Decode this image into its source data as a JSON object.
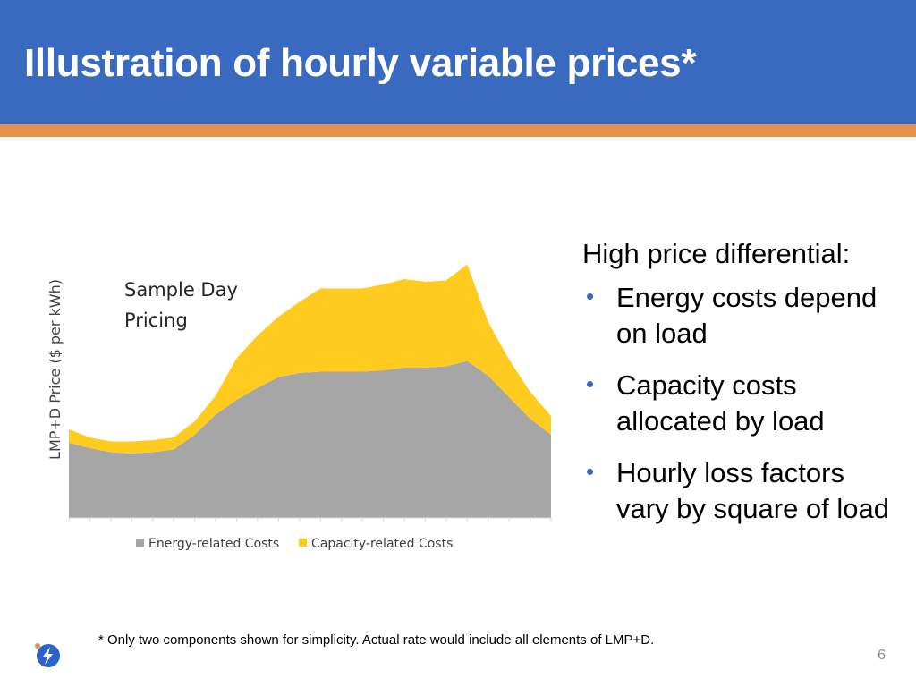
{
  "slide": {
    "title": "Illustration of hourly variable prices*",
    "footnote": "* Only two components shown for simplicity. Actual rate would include all elements of LMP+D.",
    "page_number": "6",
    "logo_icon": "lightning-bolt-icon"
  },
  "bullets": {
    "lead": "High price differential:",
    "items": [
      "Energy costs depend on load",
      "Capacity costs allocated by load",
      "Hourly loss factors vary by square of load"
    ]
  },
  "colors": {
    "header": "#3a69c0",
    "stripe": "#e4924a",
    "energy": "#a6a6a6",
    "capacity": "#ffcb1f",
    "bullet": "#3a69c0"
  },
  "chart_data": {
    "type": "area",
    "stacked": true,
    "title": "Sample Day Pricing",
    "xlabel": "",
    "ylabel": "LMP+D Price ($ per kWh)",
    "x": [
      1,
      2,
      3,
      4,
      5,
      6,
      7,
      8,
      9,
      10,
      11,
      12,
      13,
      14,
      15,
      16,
      17,
      18,
      19,
      20,
      21,
      22,
      23,
      24
    ],
    "ylim": [
      0,
      100
    ],
    "grid": false,
    "legend_position": "bottom",
    "series": [
      {
        "name": "Energy-related Costs",
        "color": "#a6a6a6",
        "values": [
          28,
          26,
          24.5,
          24,
          24.5,
          25.5,
          31,
          38.5,
          44,
          48.5,
          52.5,
          54,
          54.5,
          54.5,
          54.5,
          55,
          56,
          56,
          56.5,
          58.5,
          53,
          45,
          37,
          31
        ]
      },
      {
        "name": "Capacity-related Costs",
        "color": "#ffcb1f",
        "values": [
          5,
          4,
          4,
          4.5,
          4.5,
          4.5,
          5,
          7,
          15.5,
          19.5,
          22.5,
          26.5,
          31,
          31,
          31,
          32,
          33,
          32,
          32,
          36,
          20,
          14,
          10,
          7
        ]
      }
    ]
  }
}
